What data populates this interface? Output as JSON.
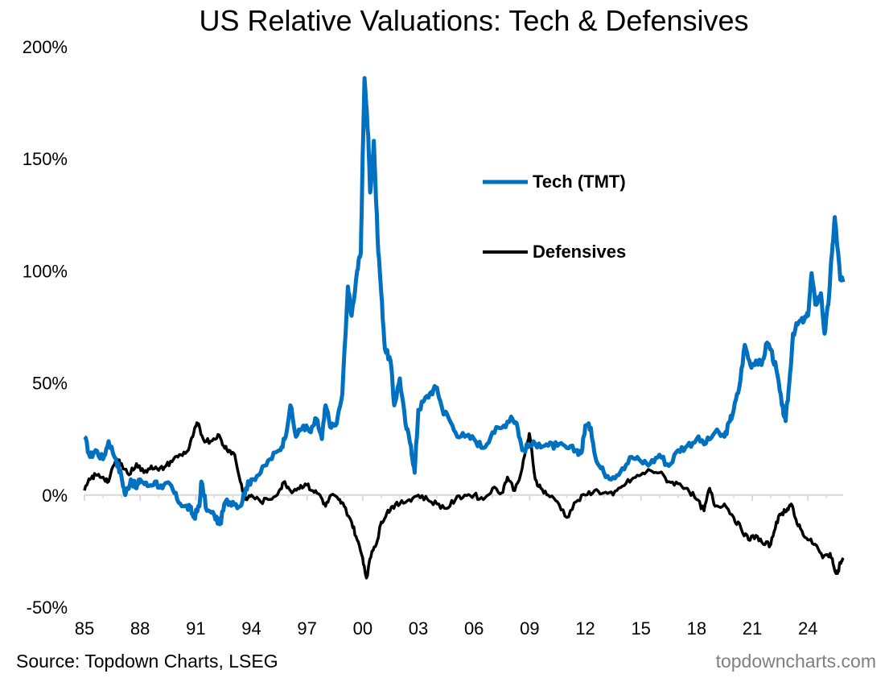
{
  "chart_data": {
    "type": "line",
    "title": "US Relative Valuations: Tech & Defensives",
    "xlabel": "",
    "ylabel": "",
    "xlim": [
      1985,
      2025.9
    ],
    "ylim": [
      -0.5,
      2.0
    ],
    "y_ticks": [
      {
        "value": 2.0,
        "label": "200%"
      },
      {
        "value": 1.5,
        "label": "150%"
      },
      {
        "value": 1.0,
        "label": "100%"
      },
      {
        "value": 0.5,
        "label": "50%"
      },
      {
        "value": 0.0,
        "label": "0%"
      },
      {
        "value": -0.5,
        "label": "-50%"
      }
    ],
    "x_ticks": [
      {
        "value": 1985,
        "label": "85"
      },
      {
        "value": 1988,
        "label": "88"
      },
      {
        "value": 1991,
        "label": "91"
      },
      {
        "value": 1994,
        "label": "94"
      },
      {
        "value": 1997,
        "label": "97"
      },
      {
        "value": 2000,
        "label": "00"
      },
      {
        "value": 2003,
        "label": "03"
      },
      {
        "value": 2006,
        "label": "06"
      },
      {
        "value": 2009,
        "label": "09"
      },
      {
        "value": 2012,
        "label": "12"
      },
      {
        "value": 2015,
        "label": "15"
      },
      {
        "value": 2018,
        "label": "18"
      },
      {
        "value": 2021,
        "label": "21"
      },
      {
        "value": 2024,
        "label": "24"
      }
    ],
    "grid": false,
    "legend_position": "inside-upper-right",
    "series": [
      {
        "name": "Tech (TMT)",
        "color": "#0070C0",
        "points": [
          [
            1985.0,
            0.26
          ],
          [
            1985.3,
            0.17
          ],
          [
            1985.6,
            0.2
          ],
          [
            1986.0,
            0.16
          ],
          [
            1986.3,
            0.24
          ],
          [
            1986.7,
            0.16
          ],
          [
            1987.0,
            0.08
          ],
          [
            1987.2,
            0.0
          ],
          [
            1987.5,
            0.07
          ],
          [
            1987.8,
            0.03
          ],
          [
            1988.0,
            0.07
          ],
          [
            1988.4,
            0.04
          ],
          [
            1988.8,
            0.06
          ],
          [
            1989.2,
            0.03
          ],
          [
            1989.6,
            0.05
          ],
          [
            1990.0,
            -0.02
          ],
          [
            1990.4,
            -0.05
          ],
          [
            1990.7,
            -0.06
          ],
          [
            1990.9,
            -0.1
          ],
          [
            1991.2,
            -0.05
          ],
          [
            1991.3,
            0.06
          ],
          [
            1991.6,
            -0.07
          ],
          [
            1992.0,
            -0.09
          ],
          [
            1992.3,
            -0.13
          ],
          [
            1992.6,
            -0.03
          ],
          [
            1993.0,
            -0.03
          ],
          [
            1993.4,
            -0.05
          ],
          [
            1993.7,
            0.03
          ],
          [
            1994.0,
            0.07
          ],
          [
            1994.5,
            0.1
          ],
          [
            1995.0,
            0.16
          ],
          [
            1995.5,
            0.2
          ],
          [
            1995.8,
            0.25
          ],
          [
            1996.1,
            0.4
          ],
          [
            1996.4,
            0.26
          ],
          [
            1996.8,
            0.31
          ],
          [
            1997.2,
            0.28
          ],
          [
            1997.5,
            0.34
          ],
          [
            1997.8,
            0.25
          ],
          [
            1998.0,
            0.4
          ],
          [
            1998.3,
            0.3
          ],
          [
            1998.6,
            0.32
          ],
          [
            1998.9,
            0.45
          ],
          [
            1999.2,
            0.93
          ],
          [
            1999.4,
            0.8
          ],
          [
            1999.7,
            1.0
          ],
          [
            1999.9,
            1.08
          ],
          [
            2000.0,
            1.52
          ],
          [
            2000.1,
            1.86
          ],
          [
            2000.3,
            1.6
          ],
          [
            2000.4,
            1.35
          ],
          [
            2000.6,
            1.58
          ],
          [
            2000.8,
            1.15
          ],
          [
            2001.0,
            0.9
          ],
          [
            2001.2,
            0.65
          ],
          [
            2001.5,
            0.6
          ],
          [
            2001.7,
            0.4
          ],
          [
            2002.0,
            0.52
          ],
          [
            2002.3,
            0.32
          ],
          [
            2002.6,
            0.22
          ],
          [
            2002.8,
            0.1
          ],
          [
            2003.0,
            0.38
          ],
          [
            2003.3,
            0.42
          ],
          [
            2003.7,
            0.46
          ],
          [
            2004.0,
            0.48
          ],
          [
            2004.3,
            0.38
          ],
          [
            2004.6,
            0.35
          ],
          [
            2005.0,
            0.28
          ],
          [
            2005.5,
            0.26
          ],
          [
            2006.0,
            0.25
          ],
          [
            2006.5,
            0.21
          ],
          [
            2007.0,
            0.28
          ],
          [
            2007.5,
            0.3
          ],
          [
            2008.0,
            0.35
          ],
          [
            2008.3,
            0.32
          ],
          [
            2008.6,
            0.2
          ],
          [
            2009.0,
            0.22
          ],
          [
            2009.5,
            0.23
          ],
          [
            2010.0,
            0.22
          ],
          [
            2010.5,
            0.22
          ],
          [
            2011.0,
            0.21
          ],
          [
            2011.5,
            0.2
          ],
          [
            2011.8,
            0.19
          ],
          [
            2012.0,
            0.31
          ],
          [
            2012.3,
            0.3
          ],
          [
            2012.6,
            0.15
          ],
          [
            2013.0,
            0.1
          ],
          [
            2013.5,
            0.08
          ],
          [
            2014.0,
            0.12
          ],
          [
            2014.5,
            0.17
          ],
          [
            2015.0,
            0.15
          ],
          [
            2015.5,
            0.14
          ],
          [
            2016.0,
            0.18
          ],
          [
            2016.5,
            0.13
          ],
          [
            2017.0,
            0.2
          ],
          [
            2017.5,
            0.22
          ],
          [
            2018.0,
            0.25
          ],
          [
            2018.5,
            0.23
          ],
          [
            2019.0,
            0.28
          ],
          [
            2019.5,
            0.26
          ],
          [
            2019.8,
            0.33
          ],
          [
            2020.0,
            0.38
          ],
          [
            2020.3,
            0.48
          ],
          [
            2020.6,
            0.67
          ],
          [
            2020.9,
            0.58
          ],
          [
            2021.2,
            0.6
          ],
          [
            2021.5,
            0.58
          ],
          [
            2021.8,
            0.68
          ],
          [
            2022.0,
            0.65
          ],
          [
            2022.3,
            0.56
          ],
          [
            2022.6,
            0.4
          ],
          [
            2022.8,
            0.33
          ],
          [
            2023.0,
            0.5
          ],
          [
            2023.2,
            0.72
          ],
          [
            2023.5,
            0.77
          ],
          [
            2023.8,
            0.78
          ],
          [
            2024.0,
            0.8
          ],
          [
            2024.2,
            0.99
          ],
          [
            2024.4,
            0.85
          ],
          [
            2024.7,
            0.9
          ],
          [
            2024.9,
            0.72
          ],
          [
            2025.1,
            0.85
          ],
          [
            2025.3,
            1.08
          ],
          [
            2025.45,
            1.24
          ],
          [
            2025.6,
            1.1
          ],
          [
            2025.75,
            0.96
          ],
          [
            2025.9,
            0.95
          ]
        ]
      },
      {
        "name": "Defensives",
        "color": "#000000",
        "points": [
          [
            1985.0,
            0.02
          ],
          [
            1985.3,
            0.07
          ],
          [
            1985.6,
            0.09
          ],
          [
            1986.0,
            0.08
          ],
          [
            1986.3,
            0.06
          ],
          [
            1986.7,
            0.16
          ],
          [
            1987.0,
            0.14
          ],
          [
            1987.4,
            0.09
          ],
          [
            1987.8,
            0.14
          ],
          [
            1988.2,
            0.1
          ],
          [
            1988.6,
            0.13
          ],
          [
            1989.0,
            0.11
          ],
          [
            1989.4,
            0.13
          ],
          [
            1989.8,
            0.16
          ],
          [
            1990.2,
            0.18
          ],
          [
            1990.6,
            0.2
          ],
          [
            1990.9,
            0.28
          ],
          [
            1991.1,
            0.32
          ],
          [
            1991.4,
            0.25
          ],
          [
            1991.8,
            0.24
          ],
          [
            1992.2,
            0.27
          ],
          [
            1992.5,
            0.22
          ],
          [
            1992.8,
            0.2
          ],
          [
            1993.1,
            0.18
          ],
          [
            1993.4,
            0.06
          ],
          [
            1993.7,
            -0.02
          ],
          [
            1994.0,
            0.0
          ],
          [
            1994.5,
            -0.03
          ],
          [
            1995.0,
            -0.02
          ],
          [
            1995.5,
            0.02
          ],
          [
            1995.8,
            0.06
          ],
          [
            1996.1,
            0.02
          ],
          [
            1996.5,
            0.03
          ],
          [
            1996.9,
            0.05
          ],
          [
            1997.3,
            0.02
          ],
          [
            1997.7,
            0.0
          ],
          [
            1998.0,
            -0.05
          ],
          [
            1998.3,
            0.0
          ],
          [
            1998.7,
            -0.02
          ],
          [
            1999.0,
            -0.05
          ],
          [
            1999.4,
            -0.12
          ],
          [
            1999.7,
            -0.2
          ],
          [
            2000.0,
            -0.28
          ],
          [
            2000.2,
            -0.37
          ],
          [
            2000.5,
            -0.25
          ],
          [
            2000.8,
            -0.2
          ],
          [
            2001.0,
            -0.12
          ],
          [
            2001.3,
            -0.08
          ],
          [
            2001.6,
            -0.05
          ],
          [
            2002.0,
            -0.04
          ],
          [
            2002.5,
            -0.02
          ],
          [
            2003.0,
            0.0
          ],
          [
            2003.5,
            -0.02
          ],
          [
            2004.0,
            -0.04
          ],
          [
            2004.5,
            -0.06
          ],
          [
            2005.0,
            -0.02
          ],
          [
            2005.5,
            0.0
          ],
          [
            2006.0,
            0.0
          ],
          [
            2006.5,
            -0.02
          ],
          [
            2007.0,
            0.03
          ],
          [
            2007.5,
            0.01
          ],
          [
            2007.8,
            0.08
          ],
          [
            2008.2,
            0.02
          ],
          [
            2008.6,
            0.12
          ],
          [
            2008.9,
            0.24
          ],
          [
            2009.0,
            0.27
          ],
          [
            2009.3,
            0.07
          ],
          [
            2009.6,
            0.03
          ],
          [
            2010.0,
            0.0
          ],
          [
            2010.5,
            -0.03
          ],
          [
            2011.0,
            -0.1
          ],
          [
            2011.5,
            -0.03
          ],
          [
            2012.0,
            0.0
          ],
          [
            2012.5,
            0.02
          ],
          [
            2013.0,
            0.01
          ],
          [
            2013.5,
            0.0
          ],
          [
            2014.0,
            0.04
          ],
          [
            2014.5,
            0.07
          ],
          [
            2015.0,
            0.09
          ],
          [
            2015.5,
            0.11
          ],
          [
            2016.0,
            0.1
          ],
          [
            2016.5,
            0.06
          ],
          [
            2017.0,
            0.05
          ],
          [
            2017.5,
            0.03
          ],
          [
            2018.0,
            -0.02
          ],
          [
            2018.4,
            -0.07
          ],
          [
            2018.7,
            0.03
          ],
          [
            2019.0,
            -0.05
          ],
          [
            2019.5,
            -0.04
          ],
          [
            2020.0,
            -0.1
          ],
          [
            2020.4,
            -0.15
          ],
          [
            2020.8,
            -0.2
          ],
          [
            2021.2,
            -0.18
          ],
          [
            2021.6,
            -0.22
          ],
          [
            2022.0,
            -0.22
          ],
          [
            2022.3,
            -0.12
          ],
          [
            2022.6,
            -0.08
          ],
          [
            2022.9,
            -0.06
          ],
          [
            2023.1,
            -0.04
          ],
          [
            2023.3,
            -0.1
          ],
          [
            2023.6,
            -0.15
          ],
          [
            2024.0,
            -0.2
          ],
          [
            2024.4,
            -0.22
          ],
          [
            2024.8,
            -0.28
          ],
          [
            2025.2,
            -0.26
          ],
          [
            2025.4,
            -0.32
          ],
          [
            2025.6,
            -0.35
          ],
          [
            2025.75,
            -0.3
          ],
          [
            2025.9,
            -0.29
          ]
        ]
      }
    ]
  },
  "footer": {
    "source": "Source: Topdown Charts, LSEG",
    "brand": "topdowncharts.com"
  }
}
